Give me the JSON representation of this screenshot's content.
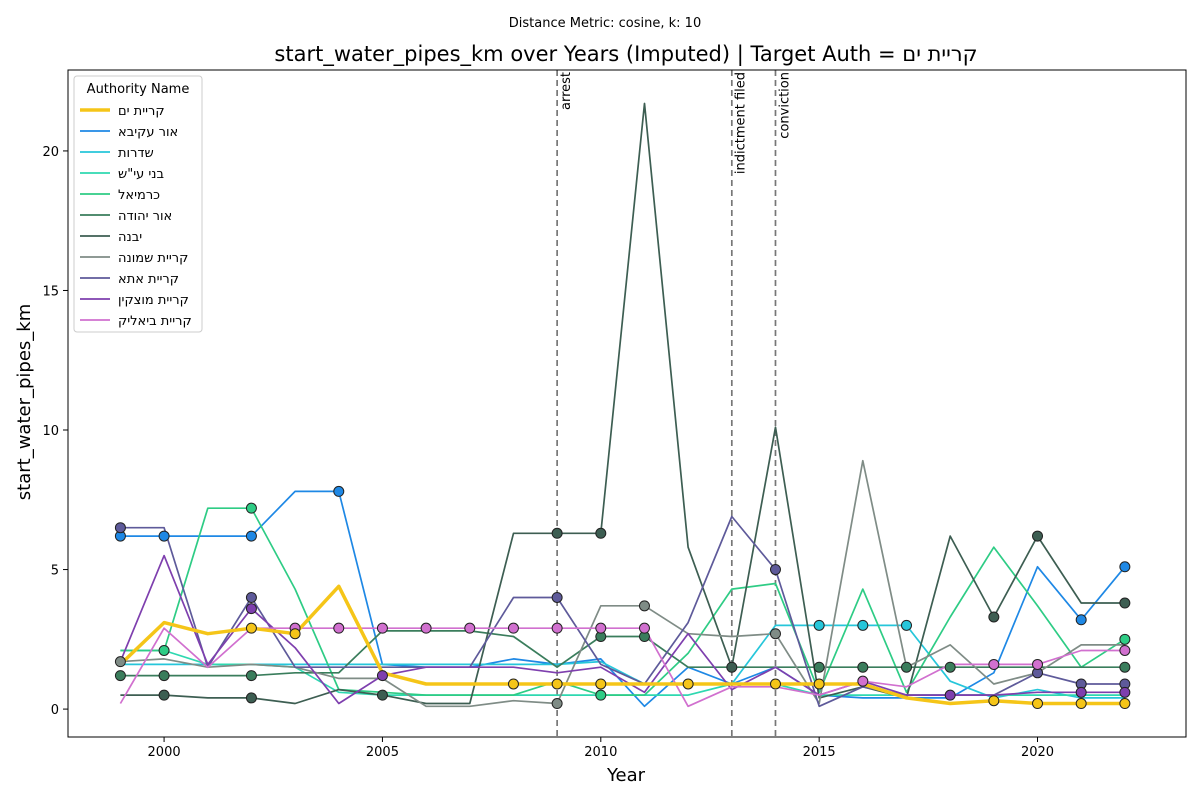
{
  "chart_data": {
    "type": "line",
    "suptitle": "Distance Metric: cosine, k: 10",
    "title": "start_water_pipes_km over Years (Imputed) | Target Auth = קריית ים",
    "xlabel": "Year",
    "ylabel": "start_water_pipes_km",
    "xlim": [
      1997.8,
      2023.4
    ],
    "ylim": [
      -1.0,
      22.9
    ],
    "xticks": [
      2000,
      2005,
      2010,
      2015,
      2020
    ],
    "yticks": [
      0,
      5,
      10,
      15,
      20
    ],
    "grid": false,
    "legend": {
      "title": "Authority Name",
      "placement": "top-left"
    },
    "x": [
      1999,
      2000,
      2001,
      2002,
      2003,
      2004,
      2005,
      2006,
      2007,
      2008,
      2009,
      2010,
      2011,
      2012,
      2013,
      2014,
      2015,
      2016,
      2017,
      2018,
      2019,
      2020,
      2021,
      2022
    ],
    "events": [
      {
        "x": 2009,
        "label": "arrest"
      },
      {
        "x": 2013,
        "label": "indictment filed"
      },
      {
        "x": 2014,
        "label": "conviction"
      }
    ],
    "series": [
      {
        "name": "קריית ים",
        "color": "#f5c518",
        "target": true,
        "values": [
          1.6,
          3.1,
          2.7,
          2.9,
          2.7,
          4.4,
          1.3,
          0.9,
          0.9,
          0.9,
          0.9,
          0.9,
          0.9,
          0.9,
          0.9,
          0.9,
          0.9,
          0.9,
          0.4,
          0.2,
          0.3,
          0.2,
          0.2,
          0.2
        ],
        "imputed": [
          2002,
          2003,
          2008,
          2009,
          2010,
          2012,
          2014,
          2015,
          2019,
          2020,
          2021,
          2022
        ]
      },
      {
        "name": "אור עקיבא",
        "color": "#1e88e5",
        "values": [
          6.2,
          6.2,
          6.2,
          6.2,
          7.8,
          7.8,
          1.6,
          1.5,
          1.5,
          1.8,
          1.6,
          1.8,
          0.1,
          1.5,
          0.9,
          1.5,
          0.5,
          0.4,
          0.4,
          0.4,
          1.3,
          5.1,
          3.2,
          5.1
        ],
        "imputed": [
          1999,
          2000,
          2002,
          2004,
          2021,
          2022
        ]
      },
      {
        "name": "שדרות",
        "color": "#26c6da",
        "values": [
          1.6,
          1.6,
          1.6,
          1.6,
          1.6,
          1.6,
          1.6,
          1.6,
          1.6,
          1.6,
          1.6,
          1.7,
          0.9,
          0.9,
          0.9,
          3.0,
          3.0,
          3.0,
          3.0,
          1.0,
          0.4,
          0.7,
          0.4,
          0.4
        ],
        "imputed": [
          2015,
          2016,
          2017
        ]
      },
      {
        "name": "בני עי\"ש",
        "color": "#2ed8b0",
        "values": [
          2.1,
          2.1,
          1.6,
          1.6,
          1.5,
          0.6,
          0.5,
          0.5,
          0.5,
          0.5,
          0.5,
          0.5,
          0.5,
          0.5,
          0.9,
          0.9,
          0.5,
          0.5,
          0.5,
          0.5,
          0.5,
          0.5,
          0.5,
          0.5
        ],
        "imputed": []
      },
      {
        "name": "כרמיאל",
        "color": "#2ecc85",
        "values": [
          2.1,
          2.1,
          7.2,
          7.2,
          4.3,
          0.7,
          0.6,
          0.5,
          0.5,
          0.5,
          1.0,
          0.5,
          0.5,
          2.0,
          4.3,
          4.5,
          0.6,
          4.3,
          0.6,
          3.3,
          5.8,
          3.7,
          1.5,
          2.5
        ],
        "imputed": [
          2000,
          2002,
          2010,
          2022
        ]
      },
      {
        "name": "אור יהודה",
        "color": "#3a7d5c",
        "values": [
          1.2,
          1.2,
          1.2,
          1.2,
          1.3,
          1.3,
          2.8,
          2.8,
          2.8,
          2.6,
          1.5,
          2.6,
          2.6,
          1.5,
          1.5,
          1.5,
          1.5,
          1.5,
          1.5,
          1.5,
          1.5,
          1.5,
          1.5,
          1.5
        ],
        "imputed": [
          1999,
          2000,
          2002,
          2010,
          2011,
          2015,
          2016,
          2017,
          2018,
          2022
        ]
      },
      {
        "name": "יבנה",
        "color": "#3d5e52",
        "values": [
          0.5,
          0.5,
          0.4,
          0.4,
          0.2,
          0.7,
          0.5,
          0.2,
          0.2,
          6.3,
          6.3,
          6.3,
          21.7,
          5.8,
          1.5,
          10.1,
          0.4,
          0.8,
          0.4,
          6.2,
          3.3,
          6.2,
          3.8,
          3.8
        ],
        "imputed": [
          2000,
          2002,
          2005,
          2009,
          2010,
          2013,
          2019,
          2020,
          2022
        ]
      },
      {
        "name": "קריית שמונה",
        "color": "#7f8c86",
        "values": [
          1.7,
          1.8,
          1.5,
          1.6,
          1.5,
          1.1,
          1.1,
          0.1,
          0.1,
          0.3,
          0.2,
          3.7,
          3.7,
          2.7,
          2.6,
          2.7,
          0.2,
          8.9,
          1.5,
          2.3,
          0.9,
          1.3,
          2.3,
          2.3
        ],
        "imputed": [
          1999,
          2009,
          2011,
          2014
        ]
      },
      {
        "name": "קריית אתא",
        "color": "#5e5a9a",
        "values": [
          6.5,
          6.5,
          1.5,
          4.0,
          1.5,
          1.5,
          1.5,
          1.5,
          1.5,
          4.0,
          4.0,
          1.6,
          0.9,
          3.1,
          6.9,
          5.0,
          0.1,
          0.8,
          0.5,
          0.5,
          0.5,
          1.3,
          0.9,
          0.9
        ],
        "imputed": [
          1999,
          2002,
          2009,
          2014,
          2020,
          2021,
          2022
        ]
      },
      {
        "name": "קריית מוצקין",
        "color": "#7e3fae",
        "values": [
          1.7,
          5.5,
          1.6,
          3.6,
          2.2,
          0.2,
          1.2,
          1.5,
          1.5,
          1.5,
          1.3,
          1.5,
          0.6,
          2.7,
          0.7,
          1.5,
          0.5,
          1.0,
          0.5,
          0.5,
          0.5,
          0.6,
          0.6,
          0.6
        ],
        "imputed": [
          2002,
          2005,
          2018,
          2021,
          2022
        ]
      },
      {
        "name": "קריית ביאליק",
        "color": "#d170cf",
        "values": [
          0.2,
          2.9,
          1.5,
          2.9,
          2.9,
          2.9,
          2.9,
          2.9,
          2.9,
          2.9,
          2.9,
          2.9,
          2.9,
          0.1,
          0.8,
          0.8,
          0.5,
          1.0,
          0.8,
          1.6,
          1.6,
          1.6,
          2.1,
          2.1
        ],
        "imputed": [
          2003,
          2004,
          2005,
          2006,
          2007,
          2008,
          2009,
          2010,
          2011,
          2016,
          2019,
          2020,
          2022
        ]
      }
    ]
  }
}
